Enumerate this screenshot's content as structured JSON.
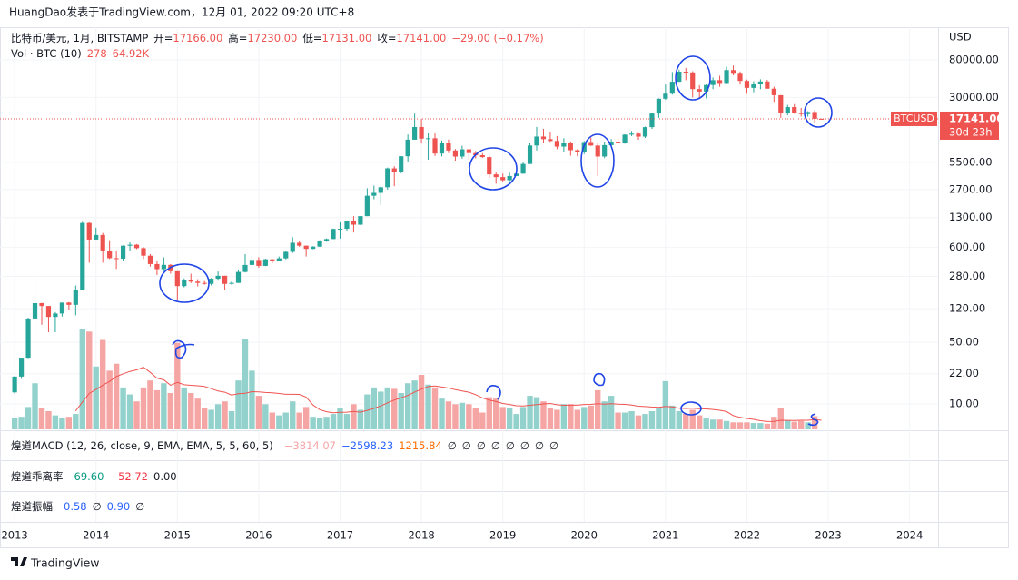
{
  "header": {
    "text": "HuangDao发表于TradingView.com，12月 01, 2022 09:20 UTC+8"
  },
  "chart_data": {
    "type": "candlestick",
    "title": "比特币/美元, 1月, BITSTAMP",
    "ohlc_legend": [
      {
        "label": "开=",
        "value": "17166.00"
      },
      {
        "label": "高=",
        "value": "17230.00"
      },
      {
        "label": "低=",
        "value": "17131.00"
      },
      {
        "label": "收=",
        "value": "17141.00"
      }
    ],
    "change": "−29.00 (−0.17%)",
    "legend_color": "#ef5350",
    "y_axis_label": "USD",
    "log_scale": true,
    "grid": true,
    "ylim": [
      5.02,
      188000
    ],
    "yticks": [
      {
        "value": 80000,
        "label": "80000.00"
      },
      {
        "value": 30000,
        "label": "30000.00"
      },
      {
        "value": 5500,
        "label": "5500.00"
      },
      {
        "value": 2700,
        "label": "2700.00"
      },
      {
        "value": 1300,
        "label": "1300.00"
      },
      {
        "value": 600,
        "label": "600.00"
      },
      {
        "value": 280,
        "label": "280.00"
      },
      {
        "value": 120,
        "label": "120.00"
      },
      {
        "value": 50,
        "label": "50.00"
      },
      {
        "value": 22,
        "label": "22.00"
      },
      {
        "value": 10,
        "label": "10.00"
      }
    ],
    "xlim": [
      2012.82,
      2024.35
    ],
    "xticks": [
      2013,
      2014,
      2015,
      2016,
      2017,
      2018,
      2019,
      2020,
      2021,
      2022,
      2023,
      2024
    ],
    "up_color": "#26a69a",
    "down_color": "#ef5350",
    "series": [
      {
        "name": "BTCUSD",
        "open": [
          13.5,
          20.4,
          33.4,
          93,
          139,
          129,
          97,
          106,
          141,
          133,
          198,
          1130,
          732,
          825,
          550,
          450,
          443,
          623,
          640,
          585,
          480,
          386,
          338,
          378,
          320,
          217,
          254,
          244,
          236,
          230,
          263,
          284,
          230,
          236,
          314,
          377,
          430,
          368,
          437,
          416,
          448,
          531,
          673,
          624,
          574,
          609,
          700,
          742,
          966,
          970,
          1190,
          1080,
          1350,
          2300,
          2480,
          2870,
          4700,
          4330,
          6450,
          9950,
          13850,
          10230,
          10330,
          6930,
          9240,
          7500,
          6400,
          7730,
          7010,
          6630,
          6310,
          4020,
          3740,
          3450,
          3850,
          4100,
          5280,
          8550,
          10800,
          10090,
          9630,
          8300,
          9180,
          7560,
          7200,
          9350,
          8540,
          6410,
          8630,
          9450,
          9140,
          11350,
          11650,
          10780,
          13800,
          19700,
          28990,
          33100,
          45200,
          58800,
          57700,
          37300,
          35000,
          41500,
          47100,
          43800,
          61300,
          57000,
          46200,
          38500,
          43200,
          45500,
          37700,
          31800,
          19900,
          23300,
          20050,
          19420,
          20500,
          17166
        ],
        "high": [
          20.7,
          33.4,
          95,
          266,
          140,
          129,
          110,
          141,
          143,
          220,
          1163,
          1150,
          1000,
          870,
          720,
          550,
          630,
          680,
          650,
          600,
          500,
          420,
          460,
          385,
          320,
          265,
          300,
          260,
          248,
          268,
          318,
          285,
          245,
          335,
          500,
          470,
          462,
          445,
          440,
          470,
          550,
          780,
          700,
          627,
          614,
          720,
          755,
          975,
          1150,
          1200,
          1350,
          1350,
          2800,
          3000,
          2950,
          4800,
          4970,
          6450,
          11400,
          19666,
          17200,
          11800,
          11700,
          9750,
          10000,
          7800,
          8500,
          7750,
          7400,
          7000,
          6550,
          4300,
          4100,
          4200,
          4150,
          5600,
          9100,
          13880,
          13200,
          12300,
          10950,
          10350,
          9500,
          7750,
          9600,
          10500,
          9200,
          9460,
          10080,
          10400,
          11450,
          12480,
          12100,
          14000,
          19850,
          29300,
          41950,
          58300,
          61800,
          64900,
          59500,
          41300,
          42500,
          50500,
          52900,
          67000,
          69000,
          59100,
          47900,
          45800,
          48200,
          47400,
          39800,
          31900,
          24700,
          25200,
          22800,
          20950,
          21450,
          17230
        ],
        "low": [
          13.1,
          19.2,
          33,
          50,
          79,
          65,
          65,
          98,
          116,
          101,
          196,
          400,
          730,
          400,
          440,
          340,
          420,
          540,
          570,
          440,
          360,
          290,
          320,
          300,
          150,
          210,
          235,
          215,
          225,
          221,
          250,
          198,
          225,
          235,
          310,
          350,
          350,
          365,
          395,
          414,
          436,
          515,
          605,
          470,
          570,
          605,
          690,
          740,
          750,
          920,
          880,
          1075,
          1350,
          2100,
          1800,
          2700,
          2950,
          4150,
          5500,
          9900,
          9000,
          5900,
          6500,
          6420,
          7000,
          5750,
          6050,
          5880,
          6100,
          6200,
          3650,
          3150,
          3350,
          3370,
          3850,
          4080,
          5270,
          7500,
          9100,
          9400,
          7750,
          7300,
          6550,
          6450,
          6850,
          8450,
          3850,
          6150,
          8100,
          8900,
          8950,
          10950,
          9900,
          10400,
          13200,
          17600,
          28100,
          32300,
          45000,
          47000,
          30000,
          28800,
          29300,
          37300,
          39600,
          43300,
          53500,
          42000,
          33000,
          34300,
          37200,
          37700,
          26700,
          17600,
          18800,
          19600,
          18200,
          18200,
          15500,
          17131
        ],
        "close": [
          20.4,
          33.4,
          93,
          139,
          129,
          97,
          106,
          141,
          133,
          198,
          1130,
          732,
          825,
          550,
          450,
          443,
          623,
          640,
          585,
          480,
          386,
          338,
          378,
          320,
          217,
          254,
          244,
          236,
          230,
          263,
          284,
          230,
          236,
          314,
          377,
          430,
          368,
          437,
          416,
          448,
          531,
          673,
          624,
          574,
          609,
          700,
          742,
          966,
          970,
          1190,
          1080,
          1350,
          2300,
          2480,
          2870,
          4700,
          4330,
          6450,
          9950,
          13850,
          10230,
          10330,
          6930,
          9240,
          7500,
          6400,
          7730,
          7010,
          6630,
          6310,
          4020,
          3740,
          3450,
          3850,
          4100,
          5280,
          8550,
          10800,
          10090,
          9630,
          8300,
          9180,
          7560,
          7200,
          9350,
          8540,
          6410,
          8630,
          9450,
          9140,
          11350,
          11650,
          10780,
          13800,
          19700,
          28990,
          33100,
          45200,
          58800,
          57700,
          37300,
          35000,
          41500,
          47100,
          43800,
          61300,
          57000,
          46200,
          38500,
          43200,
          45500,
          37700,
          31800,
          19900,
          23300,
          20050,
          19420,
          20500,
          17170,
          17141
        ]
      }
    ],
    "last_price": {
      "label": "17141.00",
      "countdown": "30d 23h"
    },
    "volume": {
      "title": "Vol · BTC (10)",
      "value_label": "278",
      "ma_label": "64.92K",
      "up_color": "#93d2cc",
      "down_color": "#f5a6a4",
      "ma_color": "#ef5350",
      "values": [
        80000,
        90000,
        160000,
        330000,
        150000,
        130000,
        100000,
        80000,
        90000,
        110000,
        715000,
        700000,
        450000,
        640000,
        420000,
        470000,
        300000,
        250000,
        200000,
        300000,
        350000,
        280000,
        330000,
        260000,
        620000,
        300000,
        260000,
        220000,
        150000,
        140000,
        180000,
        200000,
        130000,
        350000,
        650000,
        420000,
        240000,
        180000,
        120000,
        100000,
        120000,
        200000,
        120000,
        160000,
        90000,
        80000,
        90000,
        110000,
        150000,
        110000,
        180000,
        140000,
        250000,
        300000,
        270000,
        300000,
        290000,
        260000,
        330000,
        350000,
        390000,
        320000,
        300000,
        220000,
        200000,
        180000,
        190000,
        180000,
        150000,
        120000,
        230000,
        220000,
        160000,
        150000,
        110000,
        160000,
        240000,
        230000,
        200000,
        150000,
        140000,
        180000,
        180000,
        140000,
        160000,
        170000,
        280000,
        200000,
        240000,
        120000,
        120000,
        130000,
        100000,
        110000,
        130000,
        150000,
        345000,
        170000,
        130000,
        110000,
        140000,
        100000,
        80000,
        70000,
        70000,
        60000,
        50000,
        50000,
        50000,
        45000,
        45000,
        40000,
        90000,
        150000,
        65000,
        55000,
        60000,
        50000,
        94000,
        278
      ],
      "ma": [
        null,
        null,
        null,
        null,
        null,
        null,
        null,
        null,
        null,
        132000,
        195500,
        256500,
        285500,
        316500,
        343500,
        377500,
        397500,
        414500,
        425500,
        444500,
        408000,
        366000,
        354000,
        316000,
        336000,
        319000,
        315000,
        312000,
        307000,
        291000,
        274000,
        266000,
        246000,
        255000,
        258000,
        270000,
        268000,
        264000,
        261000,
        257000,
        251000,
        251000,
        250000,
        231000,
        175000,
        141000,
        126000,
        119000,
        122000,
        123000,
        129000,
        123000,
        136000,
        150000,
        168000,
        190000,
        210000,
        225000,
        243000,
        267000,
        288000,
        306000,
        311000,
        303000,
        296000,
        284000,
        274000,
        266000,
        248000,
        225000,
        209000,
        199000,
        185000,
        178000,
        169000,
        167000,
        172000,
        177000,
        182000,
        185000,
        176000,
        172000,
        174000,
        173000,
        178000,
        179000,
        183000,
        180000,
        184000,
        181000,
        179000,
        174000,
        166000,
        163000,
        160000,
        158000,
        164500,
        161500,
        150500,
        149500,
        151500,
        148500,
        146500,
        142500,
        136500,
        127500,
        98000,
        86000,
        78000,
        71500,
        62000,
        56000,
        57000,
        65000,
        64500,
        64000,
        65000,
        65000,
        69400,
        64920
      ]
    }
  },
  "indicators": [
    {
      "title": "煌道MACD (12, 26, close, 9, EMA, EMA, 5, 5, 60, 5)",
      "values": [
        {
          "text": "−3814.07",
          "color": "#f7a5a8"
        },
        {
          "text": "−2598.23",
          "color": "#2962ff"
        },
        {
          "text": "1215.84",
          "color": "#ff6d00"
        },
        {
          "text": "∅",
          "color": "#131722"
        },
        {
          "text": "∅",
          "color": "#131722"
        },
        {
          "text": "∅",
          "color": "#131722"
        },
        {
          "text": "∅",
          "color": "#131722"
        },
        {
          "text": "∅",
          "color": "#131722"
        },
        {
          "text": "∅",
          "color": "#131722"
        },
        {
          "text": "∅",
          "color": "#131722"
        },
        {
          "text": "∅",
          "color": "#131722"
        }
      ]
    },
    {
      "title": "煌道乖离率",
      "values": [
        {
          "text": "69.60",
          "color": "#089981"
        },
        {
          "text": "−52.72",
          "color": "#f23645"
        },
        {
          "text": "0.00",
          "color": "#131722"
        }
      ]
    },
    {
      "title": "煌道振幅",
      "values": [
        {
          "text": "0.58",
          "color": "#2962ff"
        },
        {
          "text": "∅",
          "color": "#131722"
        },
        {
          "text": "0.90",
          "color": "#2962ff"
        },
        {
          "text": "∅",
          "color": "#131722"
        }
      ]
    }
  ],
  "footer": {
    "brand": "TradingView"
  }
}
